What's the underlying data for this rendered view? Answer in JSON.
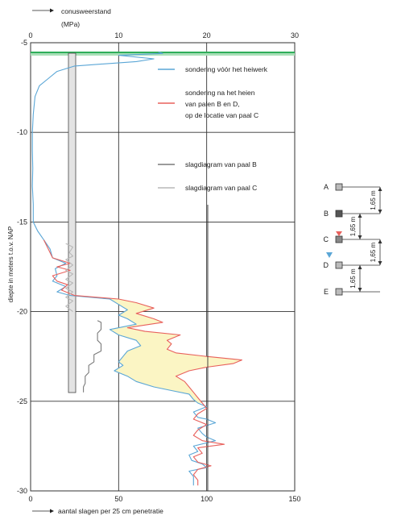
{
  "chart_data": {
    "type": "line",
    "top_axis": {
      "label_line1": "conusweerstand",
      "label_line2": "(MPa)",
      "ticks": [
        "0",
        "10",
        "20",
        "30"
      ],
      "range": [
        0,
        30
      ]
    },
    "bottom_axis": {
      "label": "aantal slagen per 25 cm penetratie",
      "ticks": [
        "0",
        "50",
        "100",
        "150"
      ],
      "range": [
        0,
        150
      ]
    },
    "y_axis": {
      "label": "diepte in meters t.o.v. NAP",
      "ticks": [
        "-5",
        "-10",
        "-15",
        "-20",
        "-25",
        "-30"
      ],
      "range": [
        -5,
        -30
      ]
    },
    "grid": true,
    "legend": [
      {
        "text": "sondering vóór het heiwerk",
        "color": "#5aa6d6"
      },
      {
        "text_lines": [
          "sondering na het heien",
          "van palen B en D,",
          "op de locatie van paal C"
        ],
        "color": "#e8605c"
      },
      {
        "text": "slagdiagram van paal B",
        "color": "#7a7a7a"
      },
      {
        "text": "slagdiagram van paal C",
        "color": "#b8b8b8"
      }
    ],
    "series": [
      {
        "name": "sondering vóór het heiwerk",
        "color": "#5aa6d6",
        "unit": "MPa",
        "points": [
          [
            14.5,
            -5.5
          ],
          [
            15,
            -5.6
          ],
          [
            10,
            -5.7
          ],
          [
            14,
            -5.9
          ],
          [
            12,
            -6.05
          ],
          [
            5,
            -6.3
          ],
          [
            3,
            -6.6
          ],
          [
            2,
            -7
          ],
          [
            1,
            -7.4
          ],
          [
            0.5,
            -8
          ],
          [
            0.3,
            -9
          ],
          [
            0.2,
            -10
          ],
          [
            0.2,
            -11
          ],
          [
            0.25,
            -12
          ],
          [
            0.2,
            -13
          ],
          [
            0.3,
            -14
          ],
          [
            0.3,
            -15
          ],
          [
            0.8,
            -15.5
          ],
          [
            1.5,
            -16
          ],
          [
            2.2,
            -16.5
          ],
          [
            2.5,
            -17
          ],
          [
            4,
            -17.3
          ],
          [
            2.8,
            -17.6
          ],
          [
            3,
            -18
          ],
          [
            2.5,
            -18.3
          ],
          [
            4,
            -18.6
          ],
          [
            3,
            -18.9
          ],
          [
            4.5,
            -19.1
          ],
          [
            9,
            -19.3
          ],
          [
            10,
            -19.6
          ],
          [
            11,
            -19.9
          ],
          [
            10,
            -20.2
          ],
          [
            11,
            -20.4
          ],
          [
            12,
            -20.7
          ],
          [
            9,
            -21
          ],
          [
            10,
            -21.3
          ],
          [
            12,
            -21.6
          ],
          [
            12.5,
            -21.9
          ],
          [
            11,
            -22.2
          ],
          [
            10.5,
            -22.5
          ],
          [
            10,
            -22.8
          ],
          [
            10.5,
            -23
          ],
          [
            9.5,
            -23.3
          ],
          [
            11,
            -23.6
          ],
          [
            12,
            -23.9
          ],
          [
            14,
            -24.2
          ],
          [
            16,
            -24.4
          ],
          [
            18,
            -24.6
          ],
          [
            18.5,
            -24.9
          ],
          [
            19,
            -25.1
          ],
          [
            20,
            -25.3
          ],
          [
            18.5,
            -25.6
          ],
          [
            19,
            -25.9
          ],
          [
            20,
            -26
          ],
          [
            21,
            -26.2
          ],
          [
            19,
            -26.5
          ],
          [
            19.5,
            -26.8
          ],
          [
            20,
            -27
          ],
          [
            21,
            -27.2
          ],
          [
            18.5,
            -27.5
          ],
          [
            19,
            -27.8
          ],
          [
            18,
            -28
          ],
          [
            18.3,
            -28.3
          ],
          [
            19.5,
            -28.5
          ],
          [
            20,
            -28.7
          ],
          [
            18,
            -28.9
          ],
          [
            18.5,
            -29.2
          ],
          [
            18.5,
            -29.7
          ]
        ]
      },
      {
        "name": "sondering na het heien van palen B en D, op de locatie van paal C",
        "color": "#e8605c",
        "unit": "MPa",
        "points": [
          [
            1.5,
            -16
          ],
          [
            2,
            -16.5
          ],
          [
            2.5,
            -17
          ],
          [
            4.5,
            -17.3
          ],
          [
            3,
            -17.5
          ],
          [
            4.5,
            -17.7
          ],
          [
            2.5,
            -18
          ],
          [
            3,
            -18.3
          ],
          [
            4.2,
            -18.5
          ],
          [
            3.5,
            -18.8
          ],
          [
            5,
            -19.1
          ],
          [
            10,
            -19.3
          ],
          [
            12,
            -19.5
          ],
          [
            14,
            -19.8
          ],
          [
            12,
            -20.1
          ],
          [
            14,
            -20.4
          ],
          [
            15,
            -20.6
          ],
          [
            11,
            -20.9
          ],
          [
            13,
            -21.1
          ],
          [
            17,
            -21.3
          ],
          [
            15.5,
            -21.6
          ],
          [
            16,
            -21.8
          ],
          [
            15.5,
            -22.1
          ],
          [
            16.5,
            -22.3
          ],
          [
            20,
            -22.5
          ],
          [
            24,
            -22.7
          ],
          [
            23,
            -22.9
          ],
          [
            20,
            -23.1
          ],
          [
            18,
            -23.3
          ],
          [
            16.5,
            -23.6
          ],
          [
            17.5,
            -23.9
          ],
          [
            18,
            -24.2
          ],
          [
            18.5,
            -24.5
          ],
          [
            19,
            -24.8
          ],
          [
            19.5,
            -25.1
          ],
          [
            20,
            -25.4
          ],
          [
            19,
            -25.7
          ],
          [
            18.5,
            -26
          ],
          [
            20,
            -26.3
          ],
          [
            19,
            -26.6
          ],
          [
            18.5,
            -26.9
          ],
          [
            19.5,
            -27.2
          ],
          [
            22,
            -27.4
          ],
          [
            19,
            -27.6
          ],
          [
            19.5,
            -27.9
          ],
          [
            18.5,
            -28.1
          ],
          [
            19,
            -28.4
          ],
          [
            20.5,
            -28.6
          ],
          [
            19,
            -28.8
          ],
          [
            18.5,
            -29.1
          ],
          [
            19,
            -29.4
          ],
          [
            19,
            -29.7
          ]
        ]
      },
      {
        "name": "slagdiagram van paal B",
        "color": "#7a7a7a",
        "unit": "slagen",
        "points": [
          [
            38,
            -20.5
          ],
          [
            40,
            -20.6
          ],
          [
            40,
            -21
          ],
          [
            38,
            -21.2
          ],
          [
            38,
            -21.6
          ],
          [
            40,
            -21.8
          ],
          [
            40,
            -22.2
          ],
          [
            36,
            -22.4
          ],
          [
            36,
            -22.8
          ],
          [
            33,
            -23
          ],
          [
            33,
            -23.4
          ],
          [
            31,
            -23.6
          ],
          [
            31,
            -24
          ],
          [
            30,
            -24.2
          ],
          [
            30,
            -24.5
          ]
        ]
      },
      {
        "name": "slagdiagram van paal C",
        "color": "#b8b8b8",
        "unit": "slagen",
        "points": [
          [
            20,
            -16.2
          ],
          [
            24,
            -16.4
          ],
          [
            22,
            -16.7
          ],
          [
            24,
            -16.9
          ],
          [
            20,
            -17.1
          ],
          [
            24,
            -17.4
          ],
          [
            20,
            -17.7
          ],
          [
            24,
            -17.9
          ],
          [
            20,
            -18.2
          ],
          [
            24,
            -18.4
          ],
          [
            20,
            -18.7
          ],
          [
            24,
            -18.9
          ],
          [
            20,
            -19.2
          ],
          [
            24,
            -19.4
          ],
          [
            20,
            -19.7
          ],
          [
            24,
            -20
          ]
        ]
      }
    ]
  },
  "pile_diagram": {
    "piles": [
      {
        "label": "A",
        "fill": "#bbbbbb"
      },
      {
        "label": "B",
        "fill": "#555555"
      },
      {
        "label": "C",
        "fill": "#888888"
      },
      {
        "label": "D",
        "fill": "#bbbbbb"
      },
      {
        "label": "E",
        "fill": "#bbbbbb"
      }
    ],
    "spacing_label": "1,65 m",
    "marker_colors": {
      "red": "#e8605c",
      "blue": "#5aa6d6"
    }
  }
}
